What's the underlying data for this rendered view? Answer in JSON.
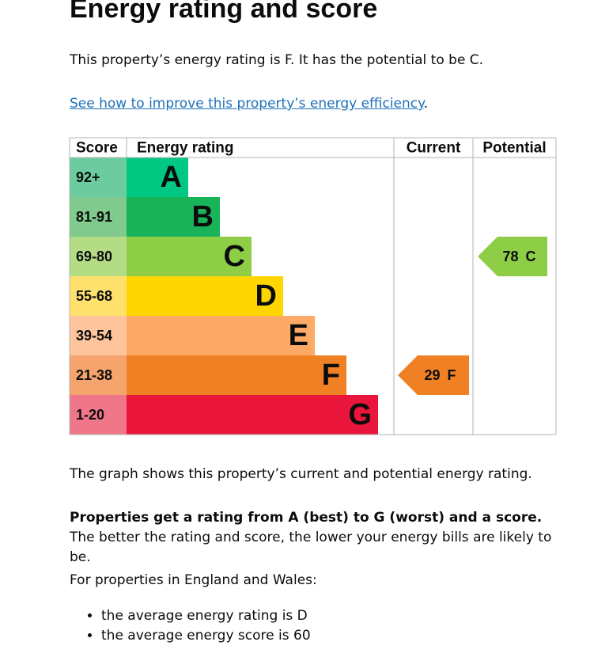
{
  "header": {
    "title": "Energy rating and score"
  },
  "intro": "This property’s energy rating is F. It has the potential to be C.",
  "link": {
    "text": "See how to improve this property’s energy efficiency",
    "suffix": "."
  },
  "graph": {
    "headers": {
      "score": "Score",
      "rating": "Energy rating",
      "current": "Current",
      "potential": "Potential"
    },
    "bands": [
      {
        "score": "92+",
        "rating": "A",
        "score_color": "#6ccca0",
        "color": "#00c781"
      },
      {
        "score": "81-91",
        "rating": "B",
        "score_color": "#7fca8c",
        "color": "#19b459"
      },
      {
        "score": "69-80",
        "rating": "C",
        "score_color": "#b4dc85",
        "color": "#8dce46"
      },
      {
        "score": "55-68",
        "rating": "D",
        "score_color": "#fde16c",
        "color": "#ffd500"
      },
      {
        "score": "39-54",
        "rating": "E",
        "score_color": "#fec49c",
        "color": "#fcaa65"
      },
      {
        "score": "21-38",
        "rating": "F",
        "score_color": "#f4a46c",
        "color": "#ef8023"
      },
      {
        "score": "1-20",
        "rating": "G",
        "score_color": "#f0778a",
        "color": "#e9153b"
      }
    ],
    "current": {
      "score": 29,
      "rating": "F",
      "color": "#ef8023"
    },
    "potential": {
      "score": 78,
      "rating": "C",
      "color": "#8dce46"
    }
  },
  "explanation": "The graph shows this property’s current and potential energy rating.",
  "rating_info": {
    "bold": "Properties get a rating from A (best) to G (worst) and a score.",
    "rest": "The better the rating and score, the lower your energy bills are likely to be."
  },
  "averages": {
    "intro": "For properties in England and Wales:",
    "items": [
      "the average energy rating is D",
      "the average energy score is 60"
    ]
  }
}
